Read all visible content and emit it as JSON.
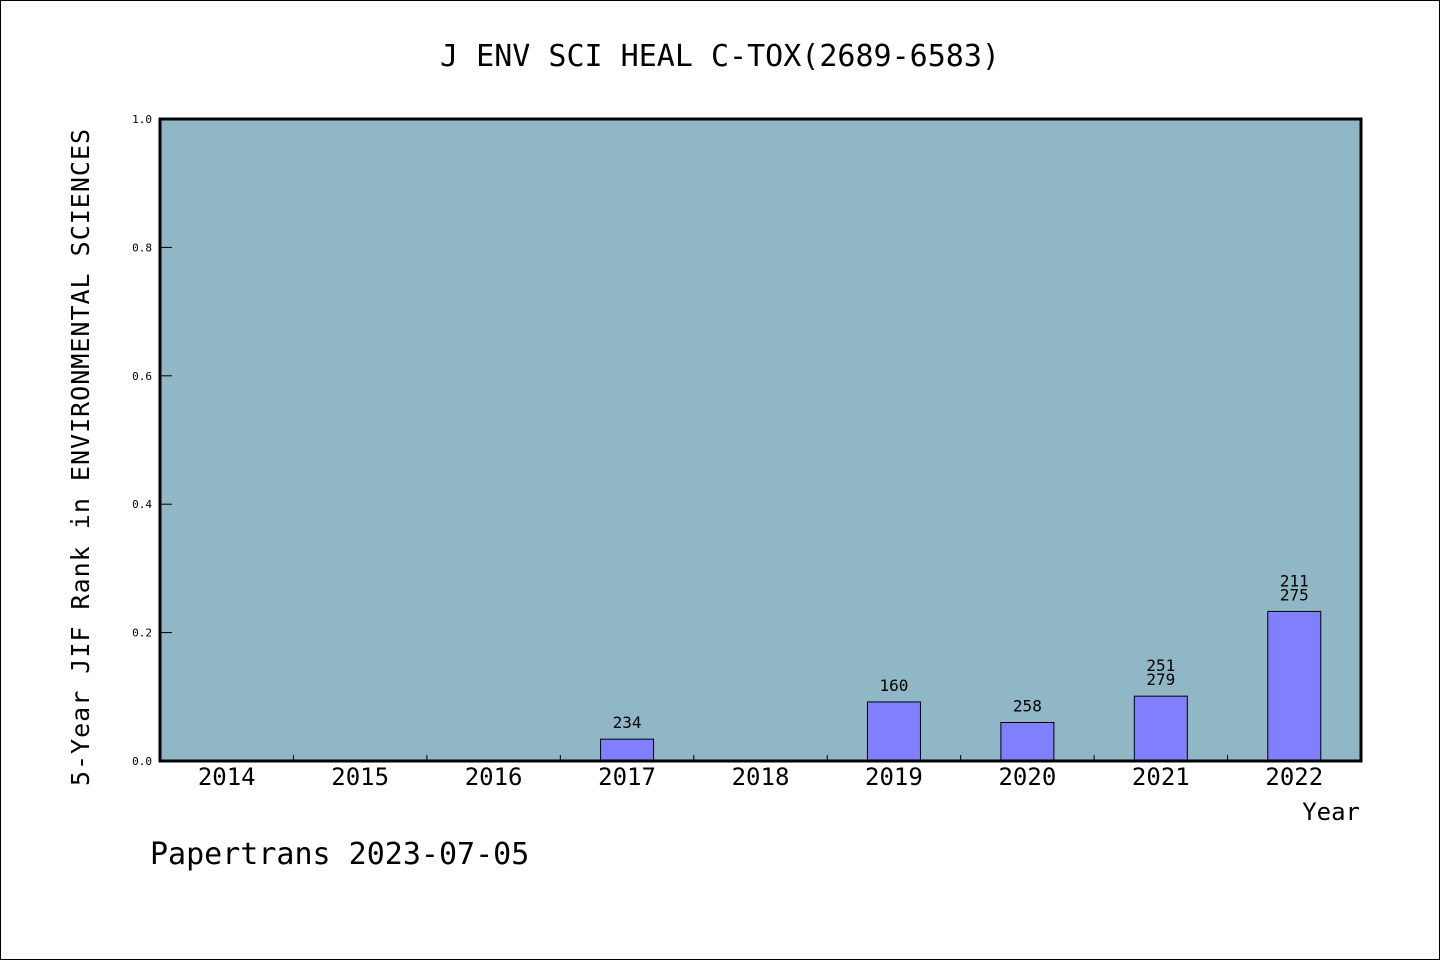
{
  "chart_data": {
    "type": "bar",
    "title": "J ENV SCI HEAL C-TOX(2689-6583)",
    "xlabel": "Year",
    "ylabel": "5-Year JIF Rank in ENVIRONMENTAL SCIENCES",
    "ylim": [
      0,
      1.0
    ],
    "yticks": [
      "0.0",
      "0.2",
      "0.4",
      "0.6",
      "0.8",
      "1.0"
    ],
    "categories": [
      "2014",
      "2015",
      "2016",
      "2017",
      "2018",
      "2019",
      "2020",
      "2021",
      "2022"
    ],
    "values": [
      null,
      null,
      null,
      0.034,
      null,
      0.092,
      0.06,
      0.101,
      0.233
    ],
    "bar_labels": [
      [],
      [],
      [],
      [
        "234"
      ],
      [],
      [
        "160"
      ],
      [
        "258"
      ],
      [
        "251",
        "279"
      ],
      [
        "211",
        "275"
      ]
    ],
    "grid": false,
    "colors": {
      "plot_background": "#8fb7c5",
      "bar": "#8080ff"
    }
  },
  "footer": "Papertrans 2023-07-05"
}
